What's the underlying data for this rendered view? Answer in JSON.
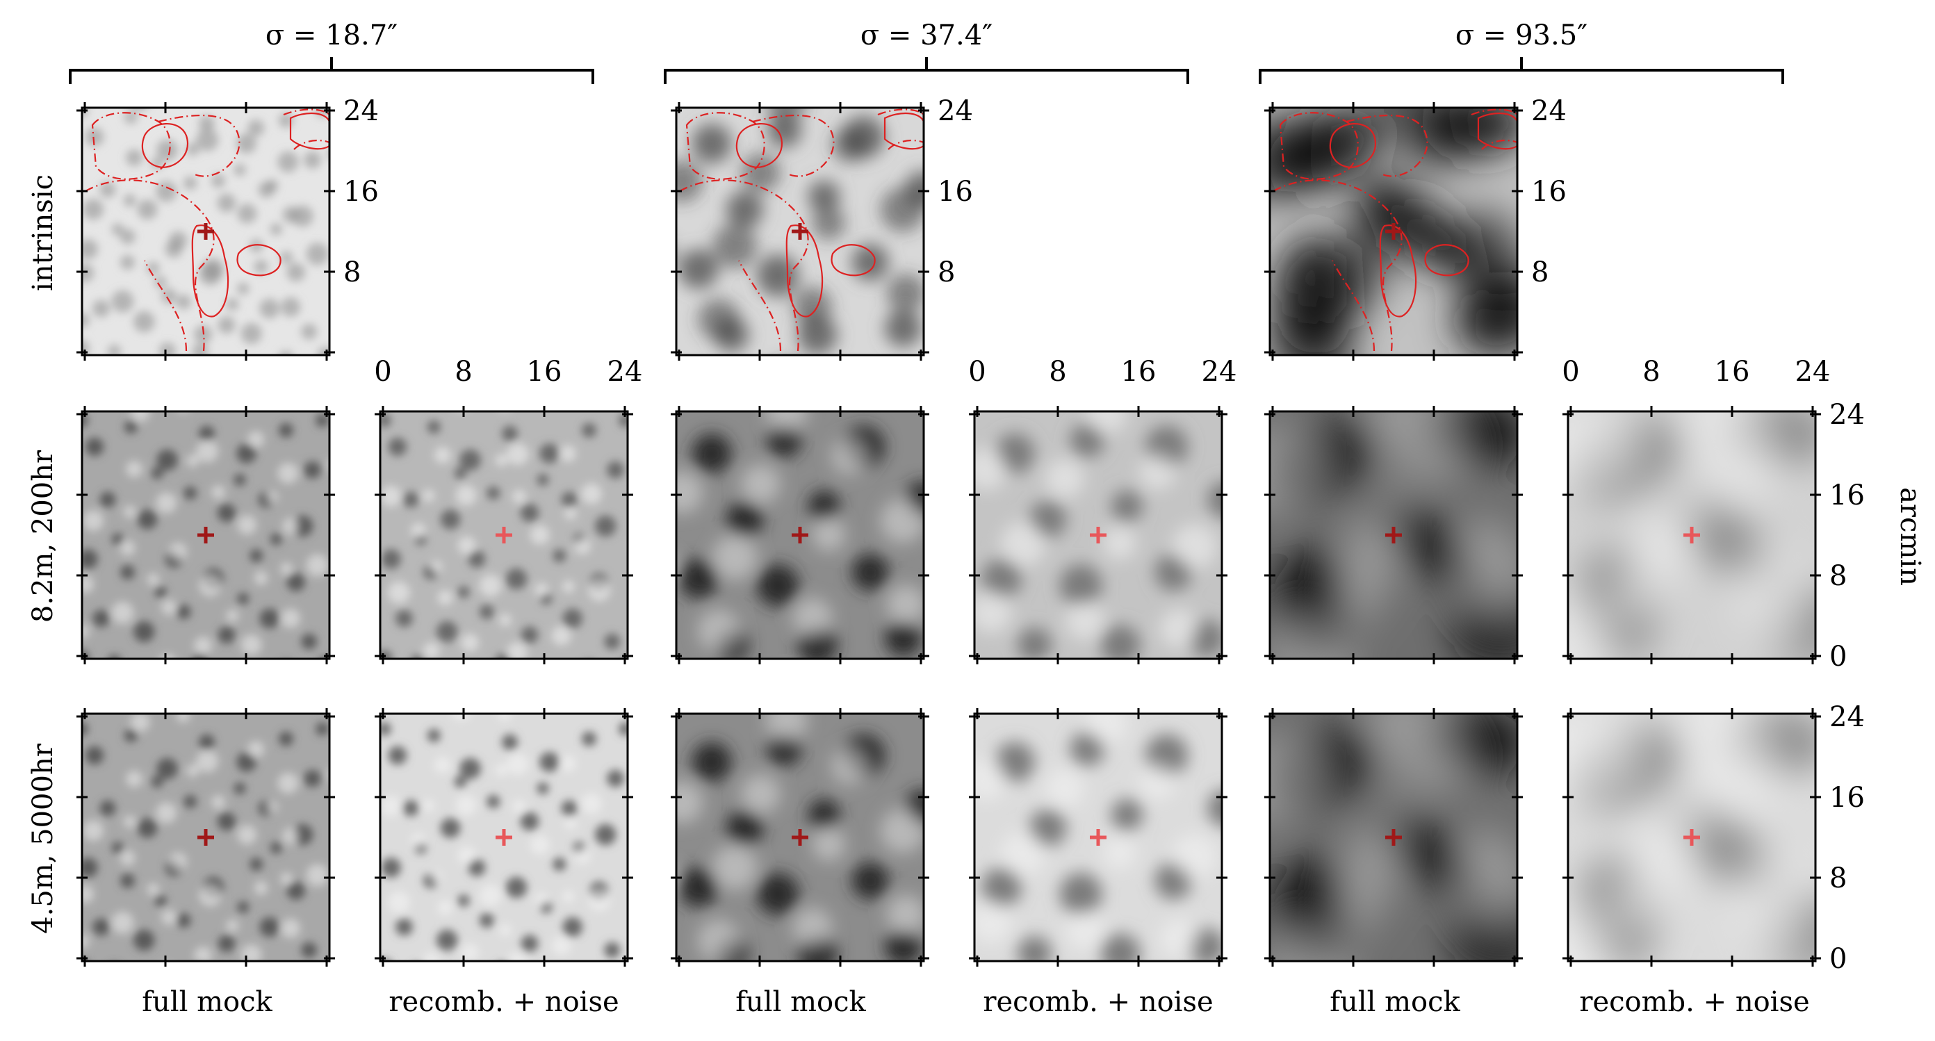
{
  "figure": {
    "column_groups": [
      {
        "title": "σ = 18.7″"
      },
      {
        "title": "σ = 37.4″"
      },
      {
        "title": "σ = 93.5″"
      }
    ],
    "row_labels": [
      "intrinsic",
      "8.2m, 200hr",
      "4.5m, 5000hr"
    ],
    "column_labels": {
      "full_mock": "full mock",
      "recomb_noise": "recomb. + noise"
    },
    "axis_unit": "arcmin",
    "ticks": [
      "0",
      "8",
      "16",
      "24"
    ],
    "colors": {
      "contour": "#dd2222",
      "marker": "#e8575a",
      "marker_dark": "#a01818",
      "frame": "#000000"
    }
  }
}
